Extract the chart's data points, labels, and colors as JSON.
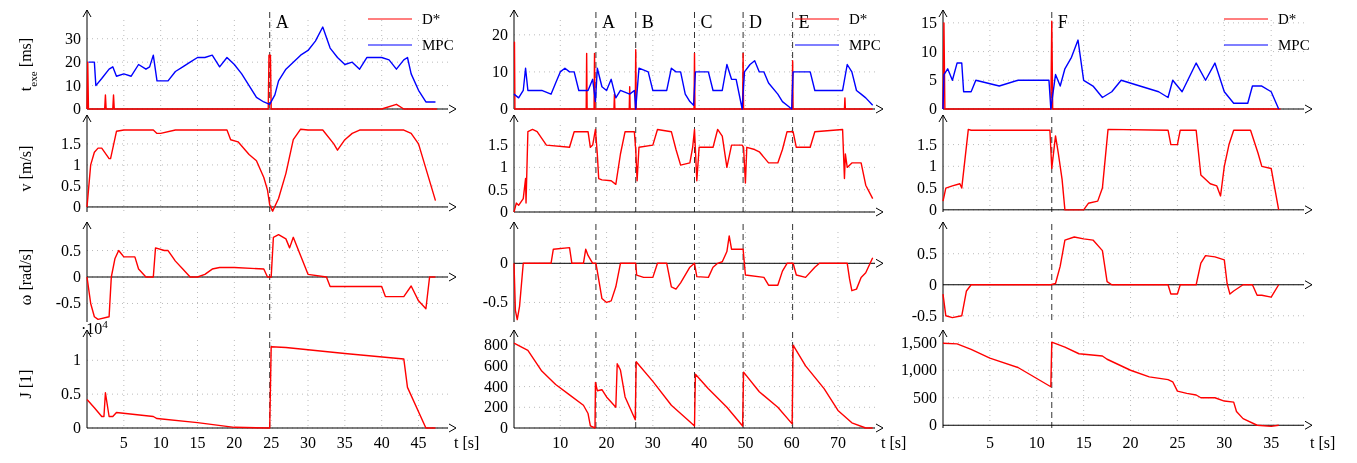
{
  "chart_data": [
    {
      "type": "line",
      "ylabel": "t$_{exe}$ [ms]",
      "xlim": [
        0,
        49
      ],
      "xticks": [
        5,
        10,
        15,
        20,
        25,
        30,
        35,
        40,
        45
      ],
      "ylim": [
        0,
        38
      ],
      "yticks": [
        0,
        10,
        20,
        30
      ],
      "grid": true,
      "tick_labels": "y",
      "legend": "top right",
      "ref_lines": [
        {
          "axis": "x",
          "value": 24.8,
          "label": "A",
          "line_style": "dashed"
        }
      ],
      "series": [
        {
          "name": "D*",
          "color": "#ff0000",
          "x": [
            0,
            0.1,
            0.2,
            2.4,
            2.5,
            2.6,
            3.5,
            3.6,
            3.7,
            24.6,
            24.7,
            24.9,
            25,
            40,
            42,
            43,
            47.5
          ],
          "values": [
            0,
            20,
            0,
            0,
            6,
            0,
            0,
            6,
            0,
            0,
            23,
            23,
            0,
            0,
            2,
            0,
            0
          ]
        },
        {
          "name": "MPC",
          "color": "#0000ff",
          "x": [
            0.2,
            1,
            1.2,
            2,
            3,
            3.5,
            4,
            5,
            6,
            7,
            8,
            8.5,
            9,
            9.5,
            10,
            11,
            12,
            13,
            14,
            15,
            16,
            17,
            18,
            19,
            20,
            21,
            22,
            23,
            24,
            24.8,
            25.5,
            26,
            27,
            28,
            29,
            30,
            31,
            32,
            33,
            34,
            35,
            36,
            37,
            38,
            39,
            40,
            41,
            42,
            43,
            43.5,
            44,
            45,
            46,
            47.3
          ],
          "values": [
            20,
            20,
            10,
            13,
            17,
            18,
            14,
            15,
            14,
            19,
            17,
            18,
            23,
            12,
            12,
            12,
            16,
            18,
            20,
            22,
            22,
            23,
            18,
            22,
            19,
            15,
            10,
            5,
            3,
            2,
            6,
            12,
            17,
            20,
            23,
            25,
            29,
            35,
            26,
            22,
            19,
            20,
            17,
            22,
            22,
            22,
            21,
            17,
            21,
            22,
            15,
            8,
            3,
            3
          ]
        }
      ]
    },
    {
      "type": "line",
      "xlim": [
        0,
        78
      ],
      "xticks": [
        10,
        20,
        30,
        40,
        50,
        60,
        70
      ],
      "ylim": [
        0,
        24
      ],
      "yticks": [
        0,
        10,
        20
      ],
      "grid": true,
      "tick_labels": "y",
      "legend": "top right",
      "ref_lines": [
        {
          "axis": "x",
          "value": 17.7,
          "label": "A",
          "line_style": "dashed"
        },
        {
          "axis": "x",
          "value": 26.3,
          "label": "B",
          "line_style": "dashed"
        },
        {
          "axis": "x",
          "value": 39,
          "label": "C",
          "line_style": "dashed"
        },
        {
          "axis": "x",
          "value": 49.5,
          "label": "D",
          "line_style": "dashed"
        },
        {
          "axis": "x",
          "value": 60.2,
          "label": "E",
          "line_style": "dashed"
        }
      ],
      "series": [
        {
          "name": "D*",
          "color": "#ff0000",
          "x": [
            0,
            0.1,
            0.2,
            15.6,
            15.7,
            15.8,
            17.3,
            17.4,
            17.5,
            21.6,
            21.7,
            21.8,
            24.9,
            25,
            25.1,
            26.2,
            26.3,
            26.4,
            38.9,
            39,
            39.1,
            49.4,
            49.5,
            49.6,
            60.1,
            60.2,
            60.3,
            71.4,
            71.5,
            71.6,
            77.5
          ],
          "values": [
            18,
            18,
            0,
            0,
            15,
            0,
            0,
            15,
            0,
            0,
            4,
            0,
            0,
            6,
            0,
            0,
            16,
            0,
            0,
            15,
            0,
            0,
            15,
            0,
            0,
            13,
            0,
            0,
            3,
            0,
            0
          ]
        },
        {
          "name": "MPC",
          "color": "#0000ff",
          "x": [
            0,
            1,
            2,
            2.5,
            3,
            4,
            6,
            8,
            9,
            10,
            11,
            12,
            13,
            14,
            15,
            16,
            17,
            17.6,
            18,
            19,
            20,
            21,
            22,
            23,
            25,
            26,
            26.3,
            27,
            29,
            30,
            32,
            33,
            34,
            35,
            36,
            37,
            38,
            38.8,
            39.2,
            40,
            42,
            43,
            44,
            45,
            46,
            47,
            48,
            49.3,
            49.8,
            51,
            52,
            53,
            54,
            55,
            57,
            58,
            59,
            60,
            60.3,
            61,
            64,
            65,
            67,
            70,
            71,
            72,
            73,
            74,
            75,
            76,
            77.5
          ],
          "values": [
            4,
            3,
            5,
            11,
            5,
            5,
            5,
            4,
            7,
            10,
            11,
            10,
            10,
            5,
            5,
            5,
            8,
            2,
            11,
            6,
            5,
            8,
            3,
            5,
            4,
            5,
            0,
            11,
            10,
            5,
            5,
            5,
            11,
            10,
            10,
            4,
            2,
            1,
            10,
            10,
            10,
            5,
            5,
            5,
            12,
            8,
            8,
            0,
            10,
            12,
            13,
            10,
            10,
            7,
            4,
            2,
            1,
            0,
            10,
            10,
            10,
            5,
            5,
            5,
            5,
            12,
            10,
            5,
            4,
            3,
            1
          ]
        }
      ]
    },
    {
      "type": "line",
      "xlim": [
        0,
        38.5
      ],
      "xticks": [
        5,
        10,
        15,
        20,
        25,
        30,
        35
      ],
      "ylim": [
        0,
        15.5
      ],
      "yticks": [
        0,
        5,
        10,
        15
      ],
      "grid": true,
      "tick_labels": "y",
      "legend": "top right",
      "ref_lines": [
        {
          "axis": "x",
          "value": 11.6,
          "label": "F",
          "line_style": "dashed"
        }
      ],
      "series": [
        {
          "name": "D*",
          "color": "#ff0000",
          "x": [
            0,
            0.1,
            0.2,
            11.5,
            11.6,
            11.7,
            36
          ],
          "values": [
            0,
            15,
            0,
            0,
            15.3,
            0,
            0
          ]
        },
        {
          "name": "MPC",
          "color": "#0000ff",
          "x": [
            0,
            0.1,
            0.5,
            1,
            1.5,
            2,
            2.2,
            3,
            3.5,
            6,
            8,
            11.3,
            11.5,
            12,
            12.5,
            13,
            13.7,
            14.4,
            15,
            16,
            17,
            18,
            19,
            21,
            23,
            24,
            24.5,
            25.5,
            27,
            28,
            29,
            30,
            31,
            32.5,
            33,
            34,
            35,
            35.8
          ],
          "values": [
            0,
            6,
            7,
            5,
            8,
            8,
            3,
            3,
            5,
            4,
            5,
            5,
            0,
            6,
            4,
            7,
            9,
            12,
            5,
            4,
            2,
            3,
            5,
            4,
            3,
            2,
            5,
            3,
            8,
            5,
            8,
            3,
            1,
            1,
            4,
            4,
            3,
            0
          ]
        }
      ]
    },
    {
      "type": "line",
      "ylabel": "v [m/s]",
      "xlim": [
        0,
        49
      ],
      "xticks": [
        5,
        10,
        15,
        20,
        25,
        30,
        35,
        40,
        45
      ],
      "ylim": [
        -0.12,
        1.95
      ],
      "yticks": [
        0,
        0.5,
        1,
        1.5
      ],
      "grid": true,
      "tick_labels": "y",
      "ref_lines": [
        {
          "axis": "x",
          "value": 24.8,
          "line_style": "dashed"
        }
      ],
      "series": [
        {
          "color": "#ff0000",
          "x": [
            0,
            0.5,
            1,
            1.5,
            2,
            3,
            3.2,
            4,
            5,
            9,
            9.5,
            10,
            12,
            19,
            19.5,
            20.5,
            21.5,
            22,
            23,
            24,
            24.5,
            24.8,
            25.2,
            26,
            27,
            28,
            29,
            30,
            32,
            33.5,
            34,
            35,
            36,
            37,
            40,
            43,
            44,
            45,
            47.3
          ],
          "values": [
            0,
            1,
            1.3,
            1.4,
            1.4,
            1.15,
            1.15,
            1.8,
            1.83,
            1.83,
            1.75,
            1.75,
            1.83,
            1.83,
            1.6,
            1.55,
            1.35,
            1.25,
            1.1,
            0.7,
            0.4,
            0.05,
            -0.1,
            0.2,
            0.8,
            1.6,
            1.85,
            1.83,
            1.83,
            1.5,
            1.35,
            1.6,
            1.75,
            1.83,
            1.83,
            1.83,
            1.75,
            1.5,
            0.15
          ]
        }
      ]
    },
    {
      "type": "line",
      "xlim": [
        0,
        78
      ],
      "xticks": [
        10,
        20,
        30,
        40,
        50,
        60,
        70
      ],
      "ylim": [
        0,
        1.95
      ],
      "yticks": [
        0,
        0.5,
        1,
        1.5
      ],
      "grid": true,
      "tick_labels": "y",
      "ref_lines": [
        {
          "axis": "x",
          "value": 17.7,
          "line_style": "dashed"
        },
        {
          "axis": "x",
          "value": 26.3,
          "line_style": "dashed"
        },
        {
          "axis": "x",
          "value": 39,
          "line_style": "dashed"
        },
        {
          "axis": "x",
          "value": 49.5,
          "line_style": "dashed"
        },
        {
          "axis": "x",
          "value": 60.2,
          "line_style": "dashed"
        }
      ],
      "series": [
        {
          "color": "#ff0000",
          "x": [
            0,
            0.5,
            1,
            2,
            2.5,
            2.6,
            3,
            4,
            5,
            7,
            12,
            13,
            16,
            16.5,
            17,
            17.6,
            18,
            18.3,
            19,
            21,
            22,
            23,
            24,
            26,
            26.3,
            26.6,
            27,
            30,
            31,
            34,
            35,
            36,
            38,
            38.6,
            39,
            39.5,
            40,
            43,
            44,
            45,
            46,
            47,
            49.3,
            49.6,
            50,
            50.3,
            52,
            53,
            55,
            57,
            58,
            59,
            60.3,
            61,
            64,
            65,
            71,
            71.4,
            71.6,
            72,
            73,
            75,
            76,
            77.5
          ],
          "values": [
            0,
            0.2,
            0.15,
            0.3,
            0.75,
            0.2,
            1.8,
            1.85,
            1.8,
            1.5,
            1.45,
            1.8,
            1.8,
            1.45,
            1.5,
            1.85,
            1.3,
            0.75,
            0.72,
            0.7,
            0.62,
            1.3,
            1.8,
            1.8,
            1.4,
            0.7,
            1.45,
            1.5,
            1.85,
            1.8,
            1.4,
            1.05,
            1.1,
            1.45,
            1.85,
            0.7,
            1.45,
            1.45,
            1.85,
            1.7,
            1.0,
            1.5,
            1.5,
            1.45,
            0.65,
            1.45,
            1.4,
            1.35,
            1.1,
            1.1,
            1.4,
            1.8,
            1.8,
            1.45,
            1.45,
            1.8,
            1.85,
            0.75,
            1.3,
            1.0,
            1.1,
            1.1,
            0.6,
            0.3
          ]
        }
      ]
    },
    {
      "type": "line",
      "xlim": [
        0,
        38.5
      ],
      "xticks": [
        5,
        10,
        15,
        20,
        25,
        30,
        35
      ],
      "ylim": [
        -0.05,
        1.95
      ],
      "yticks": [
        0,
        0.5,
        1,
        1.5
      ],
      "grid": true,
      "tick_labels": "y",
      "ref_lines": [
        {
          "axis": "x",
          "value": 11.6,
          "line_style": "dashed"
        }
      ],
      "series": [
        {
          "color": "#ff0000",
          "x": [
            0,
            0.3,
            1,
            1.8,
            2,
            2.7,
            3,
            11.4,
            11.6,
            12,
            12.3,
            12.7,
            13,
            15,
            15.5,
            16.5,
            17,
            17.6,
            24,
            24.3,
            25,
            25.3,
            27,
            27.5,
            28.5,
            29.2,
            29.6,
            30,
            30.5,
            31,
            32.8,
            33.6,
            34,
            35,
            35.8
          ],
          "values": [
            0.2,
            0.5,
            0.55,
            0.6,
            0.5,
            1.85,
            1.83,
            1.83,
            0.95,
            1.7,
            1.3,
            0.7,
            0,
            0,
            0.15,
            0.2,
            0.5,
            1.85,
            1.83,
            1.5,
            1.5,
            1.83,
            1.83,
            0.8,
            0.6,
            0.55,
            0.32,
            1,
            1.5,
            1.83,
            1.83,
            1.3,
            1.0,
            0.95,
            0
          ]
        }
      ]
    },
    {
      "type": "line",
      "ylabel": "ω [rad/s]",
      "xlim": [
        0,
        49
      ],
      "xticks": [
        5,
        10,
        15,
        20,
        25,
        30,
        35,
        40,
        45
      ],
      "ylim": [
        -0.85,
        0.85
      ],
      "yticks": [
        -0.5,
        0,
        0.5
      ],
      "grid": true,
      "tick_labels": "y",
      "ref_lines": [
        {
          "axis": "x",
          "value": 24.8,
          "line_style": "dashed"
        }
      ],
      "series": [
        {
          "color": "#ff0000",
          "x": [
            0,
            0.5,
            1,
            1.5,
            3,
            3.3,
            3.8,
            4.3,
            5,
            6.5,
            7,
            8,
            9,
            9.3,
            10.5,
            11,
            12,
            13,
            14,
            15,
            16,
            17,
            18,
            20,
            24,
            24.5,
            25,
            25.3,
            26,
            27,
            27.5,
            28,
            29,
            30,
            32.5,
            33,
            40,
            40.5,
            43,
            44,
            45,
            46,
            46.5,
            47.3
          ],
          "values": [
            0,
            -0.5,
            -0.75,
            -0.8,
            -0.75,
            0,
            0.35,
            0.5,
            0.38,
            0.38,
            0.15,
            0,
            0,
            0.55,
            0.5,
            0.5,
            0.3,
            0.15,
            0,
            0,
            0.05,
            0.15,
            0.18,
            0.18,
            0.15,
            0,
            0,
            0.75,
            0.8,
            0.72,
            0.55,
            0.75,
            0.4,
            0.05,
            0,
            -0.18,
            -0.18,
            -0.37,
            -0.37,
            -0.17,
            -0.45,
            -0.6,
            0,
            0
          ]
        }
      ]
    },
    {
      "type": "line",
      "xlim": [
        0,
        78
      ],
      "xticks": [
        10,
        20,
        30,
        40,
        50,
        60,
        70
      ],
      "ylim": [
        -0.75,
        0.4
      ],
      "yticks": [
        -0.5,
        0
      ],
      "grid": true,
      "tick_labels": "y",
      "ref_lines": [
        {
          "axis": "x",
          "value": 17.7,
          "line_style": "dashed"
        },
        {
          "axis": "x",
          "value": 26.3,
          "line_style": "dashed"
        },
        {
          "axis": "x",
          "value": 39,
          "line_style": "dashed"
        },
        {
          "axis": "x",
          "value": 49.5,
          "line_style": "dashed"
        },
        {
          "axis": "x",
          "value": 60.2,
          "line_style": "dashed"
        }
      ],
      "series": [
        {
          "color": "#ff0000",
          "x": [
            0,
            0.3,
            0.7,
            1.2,
            2,
            3,
            8,
            8.5,
            12,
            12.5,
            15,
            15.5,
            16,
            17,
            17.7,
            18,
            19,
            20,
            21,
            22,
            23,
            26.3,
            26.5,
            28,
            30,
            31,
            33,
            34,
            35,
            36,
            38,
            39,
            39.5,
            42,
            43,
            44,
            45,
            46,
            46.5,
            47,
            49.5,
            50,
            54,
            55,
            57,
            58,
            59,
            60.3,
            61,
            63,
            65,
            66,
            72,
            72.5,
            73,
            74,
            75,
            76,
            77.5
          ],
          "values": [
            0,
            -0.6,
            -0.72,
            -0.55,
            0,
            0,
            0,
            0.18,
            0.2,
            0,
            0,
            0.18,
            0.1,
            0,
            0,
            -0.1,
            -0.45,
            -0.5,
            -0.48,
            -0.3,
            0,
            0,
            -0.15,
            -0.18,
            -0.18,
            0,
            0,
            -0.3,
            -0.33,
            -0.25,
            -0.05,
            0,
            -0.17,
            -0.18,
            -0.05,
            0,
            0.02,
            0.15,
            0.35,
            0.18,
            0.18,
            -0.15,
            -0.18,
            -0.28,
            -0.28,
            -0.1,
            0,
            0,
            -0.15,
            -0.18,
            -0.05,
            0,
            0,
            -0.2,
            -0.35,
            -0.33,
            -0.18,
            -0.12,
            0.07
          ]
        }
      ]
    },
    {
      "type": "line",
      "xlim": [
        0,
        38.5
      ],
      "xticks": [
        5,
        10,
        15,
        20,
        25,
        30,
        35
      ],
      "ylim": [
        -0.6,
        0.85
      ],
      "yticks": [
        -0.5,
        0,
        0.5
      ],
      "grid": true,
      "tick_labels": "y",
      "ref_lines": [
        {
          "axis": "x",
          "value": 11.6,
          "line_style": "dashed"
        }
      ],
      "series": [
        {
          "color": "#ff0000",
          "x": [
            0,
            0.3,
            1,
            2,
            2.5,
            3,
            11.5,
            12,
            12.5,
            13,
            14,
            15,
            16,
            17,
            17.5,
            18,
            24,
            24.3,
            25,
            25.3,
            27,
            27.5,
            28,
            29,
            30,
            30.3,
            30.6,
            31,
            32,
            33,
            33.5,
            34,
            35,
            35.8
          ],
          "values": [
            -0.15,
            -0.5,
            -0.53,
            -0.5,
            -0.1,
            0,
            0,
            0.02,
            0.3,
            0.72,
            0.77,
            0.74,
            0.72,
            0.55,
            0.05,
            0,
            0,
            -0.15,
            -0.15,
            0,
            0,
            0.35,
            0.47,
            0.45,
            0.4,
            0.02,
            -0.15,
            -0.1,
            0,
            0,
            -0.17,
            -0.17,
            -0.2,
            0
          ]
        }
      ]
    },
    {
      "type": "line",
      "ylabel": "J [1]",
      "xlabel": "t [s]",
      "xlim": [
        0,
        49
      ],
      "xticks": [
        5,
        10,
        15,
        20,
        25,
        30,
        35,
        40,
        45
      ],
      "ylim": [
        0,
        1.3
      ],
      "yticks": [
        0,
        0.5,
        1
      ],
      "grid": true,
      "annotations": [
        "·10$^{4}$"
      ],
      "ref_lines": [
        {
          "axis": "x",
          "value": 24.8,
          "line_style": "dashed"
        }
      ],
      "series": [
        {
          "color": "#ff0000",
          "x": [
            0,
            1,
            2,
            2.3,
            2.5,
            3,
            3.5,
            4,
            9,
            9.5,
            15,
            20,
            24.7,
            24.8,
            25,
            27,
            35,
            43,
            43.5,
            46,
            47.3
          ],
          "values": [
            0.42,
            0.3,
            0.17,
            0.17,
            0.52,
            0.17,
            0.17,
            0.23,
            0.17,
            0.14,
            0.08,
            0.01,
            0,
            0,
            1.2,
            1.19,
            1.1,
            1.02,
            0.6,
            0,
            0
          ]
        }
      ]
    },
    {
      "type": "line",
      "xlabel": "t [s]",
      "xlim": [
        0,
        78
      ],
      "xticks": [
        10,
        20,
        30,
        40,
        50,
        60,
        70
      ],
      "ylim": [
        0,
        850
      ],
      "yticks": [
        0,
        200,
        400,
        600,
        800
      ],
      "grid": true,
      "ref_lines": [
        {
          "axis": "x",
          "value": 17.7,
          "line_style": "dashed"
        },
        {
          "axis": "x",
          "value": 26.3,
          "line_style": "dashed"
        },
        {
          "axis": "x",
          "value": 39,
          "line_style": "dashed"
        },
        {
          "axis": "x",
          "value": 49.5,
          "line_style": "dashed"
        },
        {
          "axis": "x",
          "value": 60.2,
          "line_style": "dashed"
        }
      ],
      "series": [
        {
          "color": "#ff0000",
          "x": [
            0,
            3,
            6,
            9,
            12,
            15,
            16,
            16.5,
            17.5,
            17.6,
            18,
            19,
            20,
            22,
            22.3,
            23,
            24,
            26.2,
            26.4,
            30,
            34,
            38,
            39,
            39.2,
            42,
            46,
            49.4,
            49.6,
            53,
            57,
            60.1,
            60.3,
            63,
            67,
            70,
            73,
            76,
            77.5
          ],
          "values": [
            820,
            750,
            550,
            420,
            320,
            220,
            140,
            20,
            0,
            440,
            360,
            370,
            300,
            200,
            620,
            560,
            300,
            80,
            640,
            450,
            220,
            60,
            20,
            520,
            380,
            200,
            20,
            540,
            350,
            200,
            40,
            800,
            600,
            380,
            170,
            50,
            0,
            0
          ]
        }
      ]
    },
    {
      "type": "line",
      "xlabel": "t [s]",
      "xlim": [
        0,
        38.5
      ],
      "xticks": [
        5,
        10,
        15,
        20,
        25,
        30,
        35
      ],
      "ylim": [
        -50,
        1550
      ],
      "yticks": [
        0,
        500,
        {
          "value": 1000,
          "label": "1,000"
        },
        {
          "value": 1500,
          "label": "1,500"
        }
      ],
      "grid": true,
      "ref_lines": [
        {
          "axis": "x",
          "value": 11.6,
          "line_style": "dashed"
        }
      ],
      "series": [
        {
          "color": "#ff0000",
          "x": [
            0,
            1.5,
            3,
            5,
            8,
            11.5,
            11.6,
            13,
            14.5,
            17,
            17.5,
            20,
            22,
            24,
            24.5,
            25,
            26,
            27,
            27.5,
            29,
            30,
            31,
            31.3,
            32,
            33.5,
            35,
            35.8
          ],
          "values": [
            1490,
            1480,
            1380,
            1220,
            1050,
            700,
            1510,
            1420,
            1300,
            1260,
            1200,
            1000,
            880,
            830,
            790,
            620,
            580,
            550,
            500,
            500,
            440,
            420,
            250,
            120,
            0,
            -20,
            0
          ]
        }
      ]
    }
  ]
}
